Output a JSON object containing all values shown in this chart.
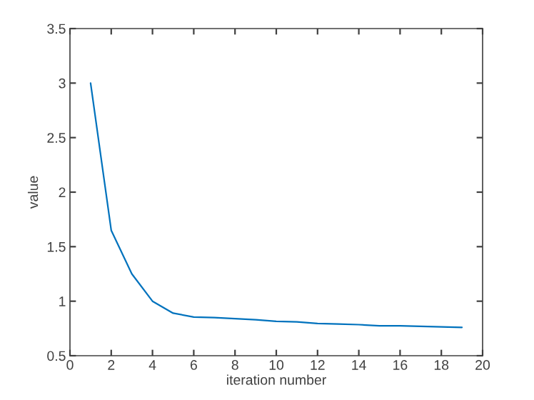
{
  "chart_data": {
    "type": "line",
    "xlabel": "iteration number",
    "ylabel": "value",
    "x": [
      1,
      2,
      3,
      4,
      5,
      6,
      7,
      8,
      9,
      10,
      11,
      12,
      13,
      14,
      15,
      16,
      17,
      18,
      19
    ],
    "series": [
      {
        "color": "#0072bd",
        "values": [
          3.0,
          1.65,
          1.25,
          1.0,
          0.89,
          0.855,
          0.85,
          0.84,
          0.83,
          0.815,
          0.81,
          0.795,
          0.79,
          0.785,
          0.775,
          0.775,
          0.77,
          0.765,
          0.76
        ]
      }
    ],
    "xlim": [
      0,
      20
    ],
    "xticks": [
      0,
      2,
      4,
      6,
      8,
      10,
      12,
      14,
      16,
      18,
      20
    ],
    "ylim": [
      0.5,
      3.5
    ],
    "yticks": [
      0.5,
      1,
      1.5,
      2,
      2.5,
      3,
      3.5
    ],
    "grid": false,
    "legend": false
  }
}
